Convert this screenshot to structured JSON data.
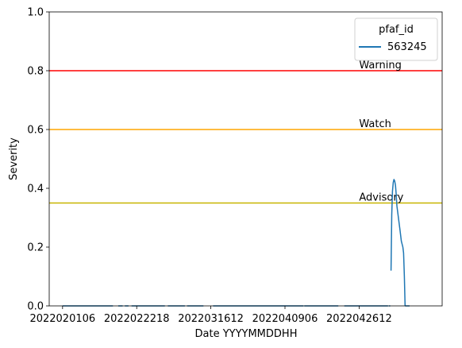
{
  "chart_data": {
    "type": "line",
    "xlabel": "Date YYYYMMDDHH",
    "ylabel": "Severity",
    "ylim": [
      0,
      1
    ],
    "yticks": [
      0.0,
      0.2,
      0.4,
      0.6,
      0.8,
      1.0
    ],
    "ytick_labels": [
      "0.0",
      "0.2",
      "0.4",
      "0.6",
      "0.8",
      "1.0"
    ],
    "xlim": [
      -0.18,
      5.12
    ],
    "xticks": [
      0,
      1,
      2,
      3,
      4
    ],
    "xtick_labels": [
      "2022020106",
      "2022022218",
      "2022031612",
      "2022040906",
      "2022042612"
    ],
    "grid": false,
    "legend": {
      "title": "pfaf_id",
      "placement": "top-right",
      "entries": [
        "563245"
      ]
    },
    "series": [
      {
        "name": "563245",
        "color": "#1f77b4",
        "segments": [
          [
            [
              0.0,
              0.0
            ],
            [
              0.68,
              0.0
            ]
          ],
          [
            [
              0.75,
              0.0
            ],
            [
              0.81,
              0.0
            ]
          ],
          [
            [
              0.84,
              0.0
            ],
            [
              0.89,
              0.0
            ]
          ],
          [
            [
              0.93,
              0.0
            ],
            [
              1.38,
              0.0
            ]
          ],
          [
            [
              1.42,
              0.0
            ],
            [
              1.65,
              0.0
            ]
          ],
          [
            [
              1.68,
              0.0
            ],
            [
              1.9,
              0.0
            ]
          ],
          [
            [
              2.03,
              0.0
            ],
            [
              3.25,
              0.0
            ]
          ],
          [
            [
              3.26,
              0.0
            ],
            [
              3.72,
              0.0
            ]
          ],
          [
            [
              3.8,
              0.0
            ],
            [
              4.39,
              0.0
            ]
          ],
          [
            [
              4.4,
              0.0
            ],
            [
              4.42,
              0.0
            ]
          ],
          [
            [
              4.43,
              0.12
            ],
            [
              4.44,
              0.31
            ],
            [
              4.45,
              0.39
            ],
            [
              4.46,
              0.42
            ],
            [
              4.47,
              0.43
            ],
            [
              4.48,
              0.425
            ],
            [
              4.49,
              0.41
            ],
            [
              4.5,
              0.38
            ],
            [
              4.51,
              0.34
            ],
            [
              4.53,
              0.3
            ],
            [
              4.55,
              0.26
            ],
            [
              4.57,
              0.22
            ],
            [
              4.59,
              0.2
            ],
            [
              4.6,
              0.18
            ],
            [
              4.61,
              0.1
            ],
            [
              4.62,
              0.0
            ]
          ],
          [
            [
              4.62,
              0.0
            ],
            [
              4.68,
              0.0
            ]
          ]
        ]
      }
    ],
    "thresholds": [
      {
        "label": "Warning",
        "value": 0.8,
        "color": "#ff0000"
      },
      {
        "label": "Watch",
        "value": 0.6,
        "color": "#ffa500"
      },
      {
        "label": "Advisory",
        "value": 0.35,
        "color": "#c8b400"
      }
    ]
  }
}
